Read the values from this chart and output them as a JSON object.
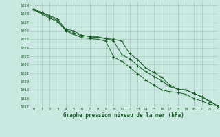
{
  "title": "Graphe pression niveau de la mer (hPa)",
  "bg_color": "#c8e8e0",
  "grid_color": "#a8c8c0",
  "line_color": "#1a5c28",
  "xlim": [
    -0.5,
    23
  ],
  "ylim": [
    1017,
    1029.5
  ],
  "xticks": [
    0,
    1,
    2,
    3,
    4,
    5,
    6,
    7,
    8,
    9,
    10,
    11,
    12,
    13,
    14,
    15,
    16,
    17,
    18,
    19,
    20,
    21,
    22,
    23
  ],
  "yticks": [
    1017,
    1018,
    1019,
    1020,
    1021,
    1022,
    1023,
    1024,
    1025,
    1026,
    1027,
    1028,
    1029
  ],
  "series": [
    [
      1028.5,
      1028.1,
      1027.7,
      1027.2,
      1026.1,
      1025.8,
      1025.4,
      1025.4,
      1025.3,
      1025.1,
      1025.0,
      1024.8,
      1023.3,
      1022.6,
      1021.6,
      1021.1,
      1020.5,
      1019.6,
      1019.1,
      1019.0,
      1018.6,
      1018.2,
      1017.6,
      1017.1
    ],
    [
      1028.5,
      1028.0,
      1027.5,
      1027.1,
      1026.0,
      1025.6,
      1025.2,
      1025.1,
      1025.0,
      1024.8,
      1022.9,
      1022.4,
      1021.7,
      1020.9,
      1020.2,
      1019.6,
      1019.0,
      1018.8,
      1018.7,
      1018.5,
      1018.0,
      1017.7,
      1017.3,
      1017.1
    ],
    [
      1028.6,
      1028.2,
      1027.8,
      1027.4,
      1026.2,
      1026.0,
      1025.5,
      1025.3,
      1025.2,
      1025.1,
      1024.8,
      1023.2,
      1022.7,
      1021.9,
      1021.2,
      1020.6,
      1020.1,
      1019.4,
      1019.1,
      1019.0,
      1018.6,
      1018.2,
      1017.7,
      1017.1
    ]
  ]
}
